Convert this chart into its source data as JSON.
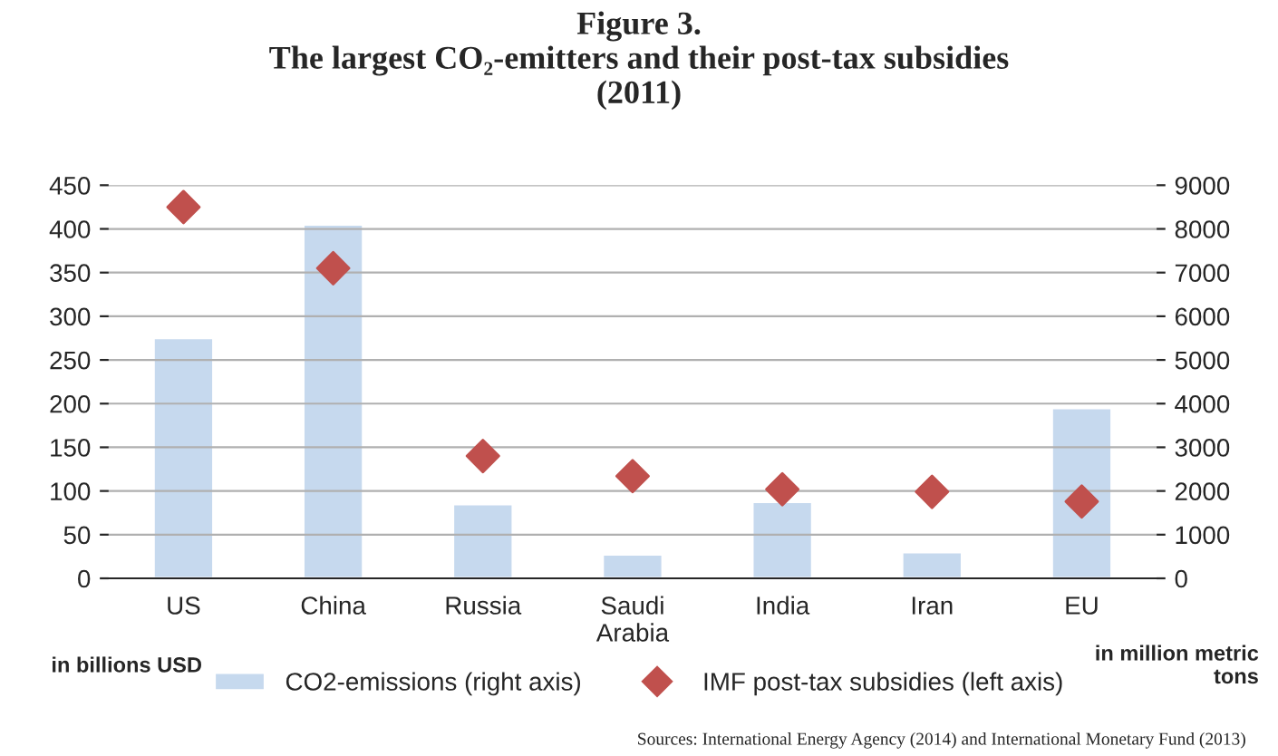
{
  "chart_data": {
    "type": "bar",
    "title": "Figure 3.\nThe largest CO₂-emitters and their post-tax subsidies\n(2011)",
    "categories": [
      "US",
      "China",
      "Russia",
      "Saudi\nArabia",
      "India",
      "Iran",
      "EU"
    ],
    "series": [
      {
        "name": "CO2-emissions (right axis)",
        "axis": "y2",
        "color": "#c6d9ee",
        "values": [
          5500,
          8100,
          1700,
          550,
          1750,
          600,
          3900
        ]
      },
      {
        "name": "IMF post-tax subsidies (left axis)",
        "type": "scatter",
        "marker": "diamond",
        "color": "#c0504d",
        "values": [
          425,
          355,
          140,
          117,
          102,
          99,
          88
        ]
      }
    ],
    "ylim": [
      0,
      450
    ],
    "yticks": [
      0,
      50,
      100,
      150,
      200,
      250,
      300,
      350,
      400,
      450
    ],
    "y2lim": [
      0,
      9000
    ],
    "y2ticks": [
      0,
      1000,
      2000,
      3000,
      4000,
      5000,
      6000,
      7000,
      8000,
      9000
    ],
    "grid": "y",
    "legend": "bottom",
    "annotations": [
      "in billions USD",
      "in million metric\ntons",
      "Sources: International Energy Agency (2014) and International Monetary Fund (2013)"
    ]
  }
}
